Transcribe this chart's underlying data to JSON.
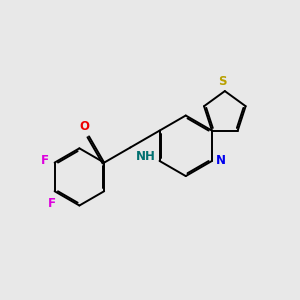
{
  "background_color": "#e8e8e8",
  "atom_colors": {
    "S": "#b8a000",
    "N_pyridine": "#0000ee",
    "N_amide": "#007070",
    "O": "#ee0000",
    "F": "#dd00dd",
    "C": "#000000"
  },
  "lw": 1.4,
  "dbo": 0.04,
  "font_size": 8.5
}
